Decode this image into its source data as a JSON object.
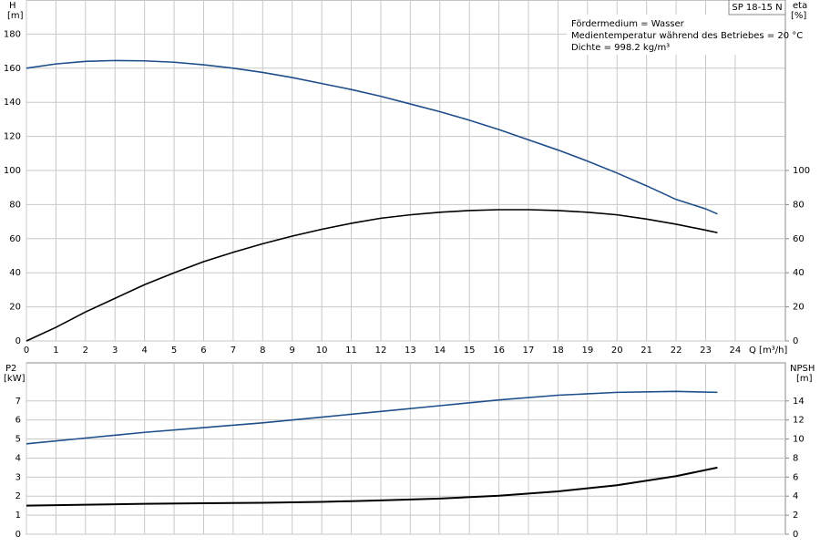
{
  "chart_data": [
    {
      "type": "line",
      "title": "SP 18-15 N",
      "ylabel": "H",
      "yunit": "[m]",
      "y2label": "eta",
      "y2unit": "[%]",
      "xlabel": "Q [m³/h]",
      "annotations": [
        "Fördermedium = Wasser",
        "Medientemperatur während des Betriebes = 20 °C",
        "Dichte = 998.2 kg/m³"
      ],
      "xlim": [
        0,
        25.7
      ],
      "xticks": [
        0,
        1,
        2,
        3,
        4,
        5,
        6,
        7,
        8,
        9,
        10,
        11,
        12,
        13,
        14,
        15,
        16,
        17,
        18,
        19,
        20,
        21,
        22,
        23,
        24
      ],
      "ylim": [
        0,
        200
      ],
      "yticks": [
        0,
        20,
        40,
        60,
        80,
        100,
        120,
        140,
        160,
        180
      ],
      "y2lim": [
        0,
        200
      ],
      "y2ticks": [
        0,
        20,
        40,
        60,
        80,
        100
      ],
      "grid": true,
      "series": [
        {
          "color": "#1f4e8c",
          "x": [
            0,
            1,
            2,
            3,
            4,
            5,
            6,
            7,
            8,
            9,
            10,
            11,
            12,
            13,
            14,
            15,
            16,
            17,
            18,
            19,
            20,
            21,
            22,
            23,
            23.4
          ],
          "values": [
            160,
            162.5,
            164,
            164.5,
            164.3,
            163.5,
            162,
            160,
            157.5,
            154.5,
            151,
            147.5,
            143.5,
            139,
            134.5,
            129.5,
            124,
            118,
            112,
            105.5,
            98.5,
            91,
            83,
            77.5,
            74.5
          ]
        },
        {
          "color": "#000000",
          "axis": "y2",
          "x": [
            0,
            1,
            2,
            3,
            4,
            5,
            6,
            7,
            8,
            9,
            10,
            11,
            12,
            13,
            14,
            15,
            16,
            17,
            18,
            19,
            20,
            21,
            22,
            23,
            23.4
          ],
          "values": [
            0,
            8,
            17,
            25,
            33,
            40,
            46.5,
            52,
            57,
            61.5,
            65.5,
            69,
            72,
            74,
            75.5,
            76.5,
            77,
            77,
            76.5,
            75.5,
            74,
            71.5,
            68.5,
            65,
            63.5
          ]
        }
      ]
    },
    {
      "type": "line",
      "ylabel": "P2",
      "yunit": "[kW]",
      "y2label": "NPSH",
      "y2unit": "[m]",
      "xlim": [
        0,
        25.7
      ],
      "ylim": [
        0,
        9
      ],
      "yticks": [
        0,
        1,
        2,
        3,
        4,
        5,
        6,
        7
      ],
      "y2lim": [
        0,
        18
      ],
      "y2ticks": [
        0,
        2,
        4,
        6,
        8,
        10,
        12,
        14
      ],
      "grid": true,
      "series": [
        {
          "color": "#1f4e8c",
          "x": [
            0,
            2,
            4,
            6,
            8,
            10,
            12,
            14,
            16,
            18,
            20,
            22,
            23.4
          ],
          "values": [
            4.75,
            5.05,
            5.35,
            5.6,
            5.85,
            6.15,
            6.45,
            6.75,
            7.05,
            7.3,
            7.45,
            7.5,
            7.45
          ]
        },
        {
          "color": "#000000",
          "axis": "y2",
          "x": [
            0,
            2,
            4,
            6,
            8,
            10,
            12,
            14,
            16,
            18,
            20,
            22,
            23.4
          ],
          "values": [
            3.0,
            3.1,
            3.2,
            3.25,
            3.3,
            3.4,
            3.55,
            3.75,
            4.05,
            4.5,
            5.15,
            6.1,
            7.0
          ]
        }
      ]
    }
  ]
}
